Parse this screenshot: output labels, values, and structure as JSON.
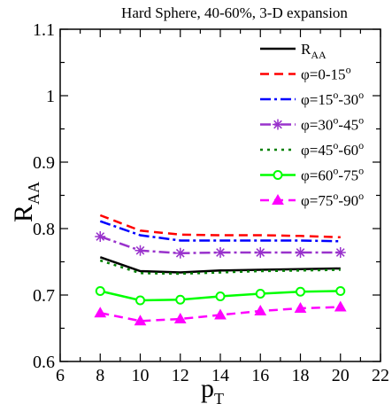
{
  "chart_data": {
    "type": "line",
    "title": "Hard Sphere, 40-60%, 3-D expansion",
    "xlabel": {
      "main": "p",
      "sub": "T"
    },
    "ylabel": {
      "main": "R",
      "sub": "AA"
    },
    "xlim": [
      6,
      22
    ],
    "ylim": [
      0.6,
      1.1
    ],
    "xticks": [
      6,
      8,
      10,
      12,
      14,
      16,
      18,
      20,
      22
    ],
    "yticks": [
      0.6,
      0.7,
      0.8,
      0.9,
      1.0,
      1.1
    ],
    "xtick_labels": [
      "6",
      "8",
      "10",
      "12",
      "14",
      "16",
      "18",
      "20",
      "22"
    ],
    "ytick_labels": [
      "0.6",
      "0.7",
      "0.8",
      "0.9",
      "1",
      "1.1"
    ],
    "grid": false,
    "legend_position": "top-right",
    "x": [
      8,
      10,
      12,
      14,
      16,
      18,
      20
    ],
    "series": [
      {
        "legend": {
          "base": "R",
          "sub": "AA"
        },
        "color": "#000000",
        "dash": "",
        "marker": "none",
        "values": [
          0.757,
          0.736,
          0.734,
          0.737,
          0.738,
          0.739,
          0.74
        ]
      },
      {
        "legend": {
          "a": "φ=0-15",
          "sup1": "o"
        },
        "color": "#ff0000",
        "dash": "10,6",
        "marker": "none",
        "values": [
          0.82,
          0.797,
          0.791,
          0.79,
          0.79,
          0.789,
          0.787
        ]
      },
      {
        "legend": {
          "a": "φ=15",
          "sup1": "o",
          "b": "-30",
          "sup2": "o"
        },
        "color": "#0000ff",
        "dash": "12,4,3,4",
        "marker": "none",
        "values": [
          0.811,
          0.79,
          0.782,
          0.782,
          0.782,
          0.782,
          0.781
        ]
      },
      {
        "legend": {
          "a": "φ=30",
          "sup1": "o",
          "b": "-45",
          "sup2": "o"
        },
        "color": "#9932cc",
        "dash": "12,4,3,4",
        "marker": "star",
        "values": [
          0.788,
          0.767,
          0.763,
          0.764,
          0.764,
          0.764,
          0.764
        ]
      },
      {
        "legend": {
          "a": "φ=45",
          "sup1": "o",
          "b": "-60",
          "sup2": "o"
        },
        "color": "#008000",
        "dash": "3,5",
        "marker": "none",
        "values": [
          0.752,
          0.733,
          0.732,
          0.734,
          0.736,
          0.737,
          0.738
        ]
      },
      {
        "legend": {
          "a": "φ=60",
          "sup1": "o",
          "b": "-75",
          "sup2": "o"
        },
        "color": "#00ff00",
        "dash": "",
        "marker": "circle",
        "values": [
          0.706,
          0.692,
          0.693,
          0.698,
          0.702,
          0.705,
          0.706
        ]
      },
      {
        "legend": {
          "a": "φ=75",
          "sup1": "o",
          "b": "-90",
          "sup2": "o"
        },
        "color": "#ff00ff",
        "dash": "10,6",
        "marker": "triangle",
        "values": [
          0.673,
          0.661,
          0.664,
          0.67,
          0.676,
          0.68,
          0.682
        ]
      }
    ]
  }
}
